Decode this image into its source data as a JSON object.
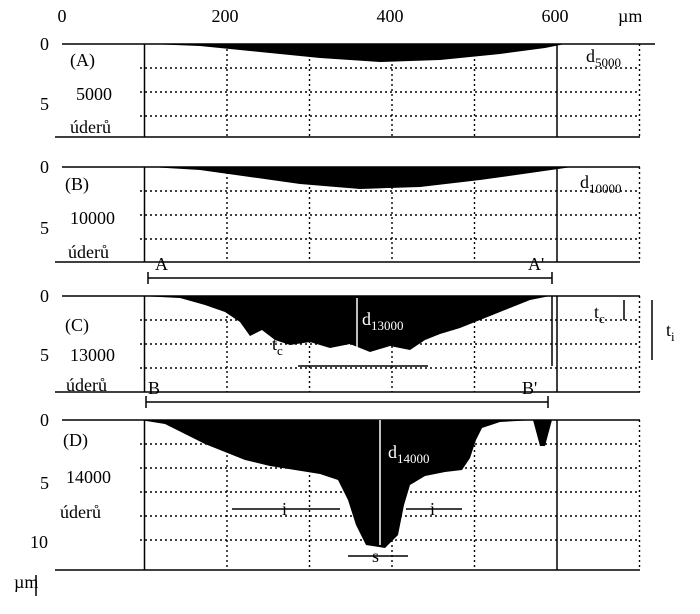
{
  "top_axis": {
    "ticks": [
      "0",
      "200",
      "400",
      "600"
    ],
    "unit": "µm"
  },
  "panels": [
    {
      "label": "(A)",
      "strokes": "5000",
      "unit_word": "úderů",
      "depth_ticks": [
        "0",
        "5"
      ],
      "depth_label": {
        "base": "d",
        "sub": "5000"
      }
    },
    {
      "label": "(B)",
      "strokes": "10000",
      "unit_word": "úderů",
      "depth_ticks": [
        "0",
        "5"
      ],
      "depth_label": {
        "base": "d",
        "sub": "10000"
      }
    },
    {
      "label": "(C)",
      "strokes": "13000",
      "unit_word": "úderů",
      "depth_ticks": [
        "0",
        "5"
      ],
      "depth_label": {
        "base": "d",
        "sub": "13000"
      }
    },
    {
      "label": "(D)",
      "strokes": "14000",
      "unit_word": "úderů",
      "depth_ticks": [
        "0",
        "5",
        "10"
      ],
      "depth_label": {
        "base": "d",
        "sub": "14000"
      }
    }
  ],
  "brackets": [
    {
      "left": "A",
      "right": "A'"
    },
    {
      "left": "B",
      "right": "B'"
    }
  ],
  "annotations": {
    "tc": {
      "base": "t",
      "sub": "c"
    },
    "ti": {
      "base": "t",
      "sub": "i"
    },
    "i": "i",
    "s": "s"
  },
  "depth_unit": "µm"
}
